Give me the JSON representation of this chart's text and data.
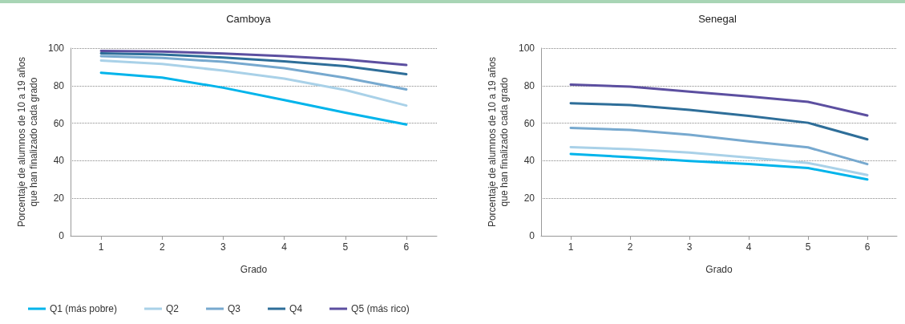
{
  "chart_data": [
    {
      "type": "line",
      "title": "Camboya",
      "xlabel": "Grado",
      "ylabel": "Porcentaje de alumnos de 10 a 19 años\nque han finalizado cada grado",
      "categories": [
        "1",
        "2",
        "3",
        "4",
        "5",
        "6"
      ],
      "ylim": [
        0,
        100
      ],
      "yticks": [
        0,
        20,
        40,
        60,
        80,
        100
      ],
      "grid": "y",
      "legend": "bottom",
      "marker": "none",
      "series": [
        {
          "name": "Q1 (más pobre)",
          "color": "#00b4eb",
          "values": [
            86.9,
            84.3,
            78.9,
            72.3,
            65.6,
            59.3
          ]
        },
        {
          "name": "Q2",
          "color": "#a9d1e8",
          "values": [
            93.4,
            91.6,
            88.0,
            83.8,
            77.7,
            69.4
          ]
        },
        {
          "name": "Q3",
          "color": "#77a9cf",
          "values": [
            95.7,
            94.8,
            92.7,
            89.3,
            84.2,
            78.0
          ]
        },
        {
          "name": "Q4",
          "color": "#2e6e99",
          "values": [
            97.2,
            96.6,
            95.0,
            93.0,
            90.4,
            86.1
          ]
        },
        {
          "name": "Q5 (más rico)",
          "color": "#5c4fa0",
          "values": [
            98.5,
            98.2,
            97.1,
            95.7,
            93.9,
            91.0
          ]
        }
      ]
    },
    {
      "type": "line",
      "title": "Senegal",
      "xlabel": "Grado",
      "ylabel": "Porcentaje de alumnos de 10 a 19 años\nque han finalizado cada grado",
      "categories": [
        "1",
        "2",
        "3",
        "4",
        "5",
        "6"
      ],
      "ylim": [
        0,
        100
      ],
      "yticks": [
        0,
        20,
        40,
        60,
        80,
        100
      ],
      "grid": "y",
      "marker": "none",
      "series": [
        {
          "color": "#00b4eb",
          "values": [
            43.6,
            41.9,
            39.8,
            38.2,
            36.1,
            30.0
          ]
        },
        {
          "color": "#a9d1e8",
          "values": [
            47.2,
            46.2,
            44.3,
            41.7,
            38.8,
            32.4
          ]
        },
        {
          "color": "#77a9cf",
          "values": [
            57.5,
            56.4,
            53.8,
            50.3,
            47.1,
            38.2
          ]
        },
        {
          "color": "#2e6e99",
          "values": [
            70.6,
            69.7,
            67.1,
            63.9,
            60.2,
            51.4
          ]
        },
        {
          "color": "#5c4fa0",
          "values": [
            80.6,
            79.5,
            76.8,
            74.3,
            71.4,
            64.1
          ]
        }
      ]
    }
  ]
}
